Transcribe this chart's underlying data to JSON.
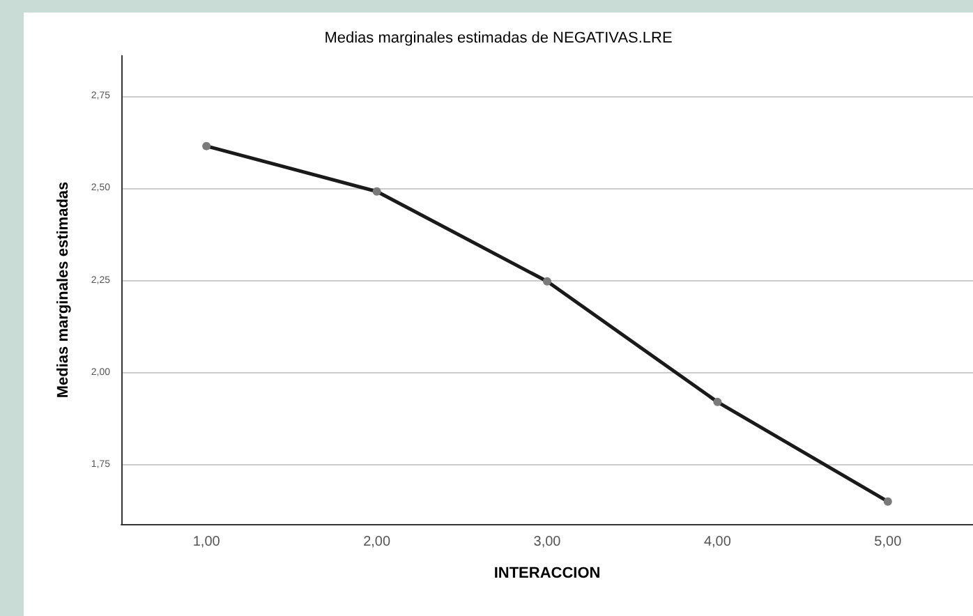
{
  "chart_data": {
    "type": "line",
    "title": "Medias marginales estimadas de NEGATIVAS.LRE",
    "xlabel": "INTERACCION",
    "ylabel": "Medias marginales estimadas",
    "categories": [
      "1,00",
      "2,00",
      "3,00",
      "4,00",
      "5,00"
    ],
    "series": [
      {
        "color": "#1a1a1a",
        "values": [
          2.615,
          2.492,
          2.248,
          1.921,
          1.651
        ]
      }
    ],
    "ylim": [
      1.59,
      2.86
    ],
    "yticks": [
      {
        "value": 1.75,
        "label": "1,75"
      },
      {
        "value": 2,
        "label": "2,00"
      },
      {
        "value": 2.25,
        "label": "2,25"
      },
      {
        "value": 2.5,
        "label": "2,50"
      },
      {
        "value": 2.75,
        "label": "2,75"
      }
    ],
    "grid": "y",
    "marker": "circle",
    "line_style": "solid"
  }
}
